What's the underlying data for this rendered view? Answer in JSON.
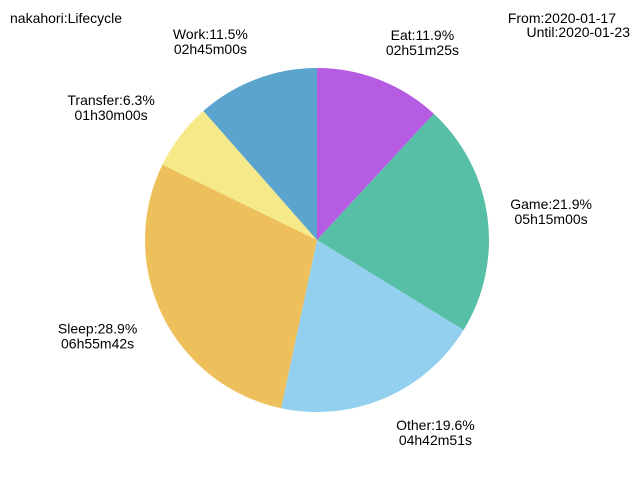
{
  "header": {
    "title": "nakahori:Lifecycle",
    "from": "From:2020-01-17",
    "until": "Until:2020-01-23"
  },
  "chart_data": {
    "type": "pie",
    "title": "nakahori:Lifecycle",
    "start_angle_deg": 90,
    "direction": "clockwise",
    "slices": [
      {
        "label": "Eat",
        "percent_text": "Eat:11.9%",
        "duration": "02h51m25s",
        "value": 11.9,
        "color": "#b65ce2"
      },
      {
        "label": "Game",
        "percent_text": "Game:21.9%",
        "duration": "05h15m00s",
        "value": 21.9,
        "color": "#58bfa7"
      },
      {
        "label": "Other",
        "percent_text": "Other:19.6%",
        "duration": "04h42m51s",
        "value": 19.6,
        "color": "#93cfef"
      },
      {
        "label": "Sleep",
        "percent_text": "Sleep:28.9%",
        "duration": "06h55m42s",
        "value": 28.9,
        "color": "#edc05c"
      },
      {
        "label": "Transfer",
        "percent_text": "Transfer:6.3%",
        "duration": "01h30m00s",
        "value": 6.3,
        "color": "#f5e989"
      },
      {
        "label": "Work",
        "percent_text": "Work:11.5%",
        "duration": "02h45m00s",
        "value": 11.5,
        "color": "#5aa4ce"
      }
    ]
  }
}
